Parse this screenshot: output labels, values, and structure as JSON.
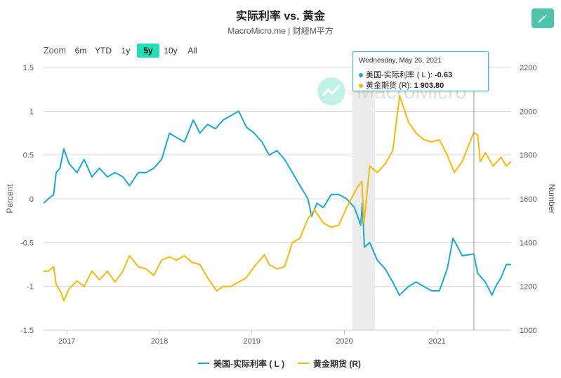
{
  "header": {
    "title": "实际利率 vs. 黄金",
    "subtitle": "MacroMicro.me | 财經M平方"
  },
  "watermark": "MacroMicro",
  "toolbar": {
    "edit_icon": "pencil-icon",
    "zoom_label": "Zoom",
    "zoom_options": [
      "6m",
      "YTD",
      "1y",
      "5y",
      "10y",
      "All"
    ],
    "zoom_selected": "5y"
  },
  "colors": {
    "series_left": "#1ba8d2",
    "series_right": "#f4b90c",
    "accent_button": "#4fc3a9",
    "zoom_active": "#20e0b8",
    "highlight_band": "#ececec"
  },
  "tooltip": {
    "date": "Wednesday, May 26, 2021",
    "rows": [
      {
        "label": "美国-实际利率 ( L ): ",
        "value": "-0.63"
      },
      {
        "label": "黄金期货 (R): ",
        "value": "1 903.80"
      }
    ]
  },
  "legend": [
    {
      "label": "美国-实际利率 ( L )"
    },
    {
      "label": "黄金期货 (R)"
    }
  ],
  "chart_data": {
    "type": "line",
    "ylabel_left": "Percent",
    "ylabel_right": "Number",
    "ylim_left": [
      -1.5,
      1.5
    ],
    "ylim_right": [
      1000,
      2200
    ],
    "yticks_left": [
      "1.5",
      "1",
      "0.5",
      "0",
      "-0.5",
      "-1",
      "-1.5"
    ],
    "yticks_right": [
      "2200",
      "2000",
      "1800",
      "1600",
      "1400",
      "1200",
      "1000"
    ],
    "xticks": [
      "2017",
      "2018",
      "2019",
      "2020",
      "2021"
    ],
    "xlim": [
      "2016-10-01",
      "2021-10-20"
    ],
    "highlight_band": [
      "2020-02-01",
      "2020-05-01"
    ],
    "crosshair_date": "2021-05-26",
    "grid": "horizontal",
    "legend_position": "bottom-center",
    "series": [
      {
        "name": "美国-实际利率 ( L )",
        "axis": "left",
        "points": [
          [
            "2016-10-01",
            -0.05
          ],
          [
            "2016-10-20",
            0.0
          ],
          [
            "2016-11-10",
            0.05
          ],
          [
            "2016-11-20",
            0.3
          ],
          [
            "2016-12-05",
            0.35
          ],
          [
            "2016-12-15",
            0.5
          ],
          [
            "2016-12-20",
            0.57
          ],
          [
            "2017-01-10",
            0.4
          ],
          [
            "2017-02-10",
            0.3
          ],
          [
            "2017-03-10",
            0.45
          ],
          [
            "2017-04-10",
            0.25
          ],
          [
            "2017-05-10",
            0.35
          ],
          [
            "2017-06-10",
            0.25
          ],
          [
            "2017-07-10",
            0.3
          ],
          [
            "2017-08-10",
            0.25
          ],
          [
            "2017-09-05",
            0.15
          ],
          [
            "2017-10-10",
            0.3
          ],
          [
            "2017-11-10",
            0.3
          ],
          [
            "2017-12-10",
            0.35
          ],
          [
            "2018-01-10",
            0.45
          ],
          [
            "2018-02-10",
            0.75
          ],
          [
            "2018-03-10",
            0.7
          ],
          [
            "2018-04-10",
            0.65
          ],
          [
            "2018-05-15",
            0.9
          ],
          [
            "2018-06-10",
            0.75
          ],
          [
            "2018-07-10",
            0.85
          ],
          [
            "2018-08-10",
            0.8
          ],
          [
            "2018-09-10",
            0.9
          ],
          [
            "2018-10-10",
            0.95
          ],
          [
            "2018-11-10",
            1.0
          ],
          [
            "2018-12-10",
            0.82
          ],
          [
            "2019-01-10",
            0.75
          ],
          [
            "2019-02-10",
            0.65
          ],
          [
            "2019-03-10",
            0.5
          ],
          [
            "2019-04-10",
            0.55
          ],
          [
            "2019-05-10",
            0.45
          ],
          [
            "2019-06-10",
            0.3
          ],
          [
            "2019-07-10",
            0.15
          ],
          [
            "2019-08-10",
            0.0
          ],
          [
            "2019-08-25",
            -0.2
          ],
          [
            "2019-09-15",
            -0.05
          ],
          [
            "2019-10-10",
            -0.1
          ],
          [
            "2019-11-10",
            0.05
          ],
          [
            "2019-12-10",
            0.05
          ],
          [
            "2020-01-10",
            0.0
          ],
          [
            "2020-02-10",
            -0.1
          ],
          [
            "2020-03-05",
            -0.3
          ],
          [
            "2020-03-12",
            -0.05
          ],
          [
            "2020-03-20",
            -0.55
          ],
          [
            "2020-04-10",
            -0.5
          ],
          [
            "2020-05-10",
            -0.7
          ],
          [
            "2020-06-10",
            -0.8
          ],
          [
            "2020-07-10",
            -0.95
          ],
          [
            "2020-08-05",
            -1.1
          ],
          [
            "2020-09-10",
            -1.0
          ],
          [
            "2020-10-10",
            -0.95
          ],
          [
            "2020-11-10",
            -1.0
          ],
          [
            "2020-12-10",
            -1.05
          ],
          [
            "2021-01-10",
            -1.05
          ],
          [
            "2021-02-10",
            -0.8
          ],
          [
            "2021-03-05",
            -0.45
          ],
          [
            "2021-04-10",
            -0.65
          ],
          [
            "2021-05-26",
            -0.63
          ],
          [
            "2021-06-10",
            -0.85
          ],
          [
            "2021-07-10",
            -0.95
          ],
          [
            "2021-08-05",
            -1.1
          ],
          [
            "2021-08-20",
            -1.0
          ],
          [
            "2021-09-10",
            -0.9
          ],
          [
            "2021-10-01",
            -0.75
          ],
          [
            "2021-10-20",
            -0.75
          ]
        ]
      },
      {
        "name": "黄金期货 (R)",
        "axis": "right",
        "points": [
          [
            "2016-10-01",
            1270
          ],
          [
            "2016-10-20",
            1270
          ],
          [
            "2016-11-10",
            1290
          ],
          [
            "2016-11-20",
            1210
          ],
          [
            "2016-12-10",
            1170
          ],
          [
            "2016-12-20",
            1135
          ],
          [
            "2017-01-10",
            1190
          ],
          [
            "2017-02-10",
            1225
          ],
          [
            "2017-03-10",
            1200
          ],
          [
            "2017-04-10",
            1270
          ],
          [
            "2017-05-10",
            1230
          ],
          [
            "2017-06-10",
            1270
          ],
          [
            "2017-07-10",
            1220
          ],
          [
            "2017-08-10",
            1270
          ],
          [
            "2017-09-05",
            1340
          ],
          [
            "2017-10-10",
            1290
          ],
          [
            "2017-11-10",
            1280
          ],
          [
            "2017-12-10",
            1250
          ],
          [
            "2018-01-10",
            1320
          ],
          [
            "2018-02-10",
            1335
          ],
          [
            "2018-03-10",
            1320
          ],
          [
            "2018-04-10",
            1340
          ],
          [
            "2018-05-10",
            1310
          ],
          [
            "2018-06-10",
            1300
          ],
          [
            "2018-07-10",
            1240
          ],
          [
            "2018-08-15",
            1180
          ],
          [
            "2018-09-10",
            1200
          ],
          [
            "2018-10-10",
            1200
          ],
          [
            "2018-11-10",
            1220
          ],
          [
            "2018-12-10",
            1240
          ],
          [
            "2019-01-10",
            1290
          ],
          [
            "2019-02-20",
            1345
          ],
          [
            "2019-03-10",
            1300
          ],
          [
            "2019-04-10",
            1280
          ],
          [
            "2019-05-10",
            1290
          ],
          [
            "2019-06-10",
            1400
          ],
          [
            "2019-07-10",
            1420
          ],
          [
            "2019-08-10",
            1510
          ],
          [
            "2019-09-05",
            1550
          ],
          [
            "2019-10-10",
            1490
          ],
          [
            "2019-11-10",
            1470
          ],
          [
            "2019-12-10",
            1480
          ],
          [
            "2020-01-10",
            1560
          ],
          [
            "2020-02-20",
            1650
          ],
          [
            "2020-03-10",
            1680
          ],
          [
            "2020-03-18",
            1490
          ],
          [
            "2020-04-10",
            1750
          ],
          [
            "2020-05-10",
            1720
          ],
          [
            "2020-06-10",
            1760
          ],
          [
            "2020-07-10",
            1820
          ],
          [
            "2020-08-06",
            2070
          ],
          [
            "2020-09-10",
            1950
          ],
          [
            "2020-10-10",
            1900
          ],
          [
            "2020-11-10",
            1870
          ],
          [
            "2020-12-10",
            1860
          ],
          [
            "2021-01-10",
            1870
          ],
          [
            "2021-02-10",
            1800
          ],
          [
            "2021-03-10",
            1720
          ],
          [
            "2021-04-10",
            1770
          ],
          [
            "2021-05-26",
            1903.8
          ],
          [
            "2021-06-10",
            1890
          ],
          [
            "2021-06-20",
            1770
          ],
          [
            "2021-07-10",
            1810
          ],
          [
            "2021-08-10",
            1750
          ],
          [
            "2021-09-10",
            1790
          ],
          [
            "2021-10-01",
            1750
          ],
          [
            "2021-10-20",
            1770
          ]
        ]
      }
    ]
  }
}
